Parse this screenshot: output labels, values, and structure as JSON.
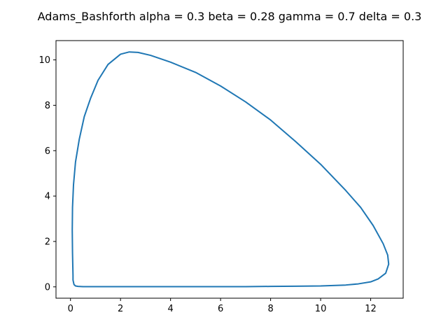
{
  "chart_data": {
    "type": "line",
    "title": "Adams_Bashforth alpha = 0.3 beta = 0.28 gamma = 0.7 delta = 0.3",
    "xlabel": "",
    "ylabel": "",
    "xlim": [
      -0.58,
      13.3
    ],
    "ylim": [
      -0.5,
      10.85
    ],
    "xticks": [
      0,
      2,
      4,
      6,
      8,
      10,
      12
    ],
    "xtick_labels": [
      "0",
      "2",
      "4",
      "6",
      "8",
      "10",
      "12"
    ],
    "yticks": [
      0,
      2,
      4,
      6,
      8,
      10
    ],
    "ytick_labels": [
      "0",
      "2",
      "4",
      "6",
      "8",
      "10"
    ],
    "grid": false,
    "series": [
      {
        "color": "#1f77b4",
        "x": [
          0.1,
          0.08,
          0.07,
          0.08,
          0.12,
          0.2,
          0.35,
          0.55,
          0.8,
          1.1,
          1.5,
          2.0,
          2.35,
          2.7,
          3.2,
          4.0,
          5.0,
          6.0,
          7.0,
          8.0,
          9.0,
          10.0,
          11.0,
          11.6,
          12.1,
          12.5,
          12.68,
          12.72,
          12.6,
          12.3,
          12.0,
          11.5,
          11.0,
          10.5,
          10.0,
          9.0,
          8.0,
          7.0,
          6.0,
          5.0,
          4.0,
          3.0,
          2.0,
          1.0,
          0.5,
          0.3,
          0.2,
          0.14,
          0.1
        ],
        "y": [
          0.5,
          1.5,
          2.5,
          3.5,
          4.5,
          5.5,
          6.5,
          7.5,
          8.3,
          9.1,
          9.8,
          10.25,
          10.35,
          10.33,
          10.2,
          9.9,
          9.45,
          8.85,
          8.15,
          7.35,
          6.4,
          5.4,
          4.25,
          3.5,
          2.7,
          1.9,
          1.4,
          1.0,
          0.6,
          0.35,
          0.22,
          0.13,
          0.08,
          0.06,
          0.04,
          0.03,
          0.02,
          0.01,
          0.01,
          0.01,
          0.01,
          0.01,
          0.01,
          0.01,
          0.01,
          0.02,
          0.04,
          0.1,
          0.3
        ]
      }
    ]
  }
}
